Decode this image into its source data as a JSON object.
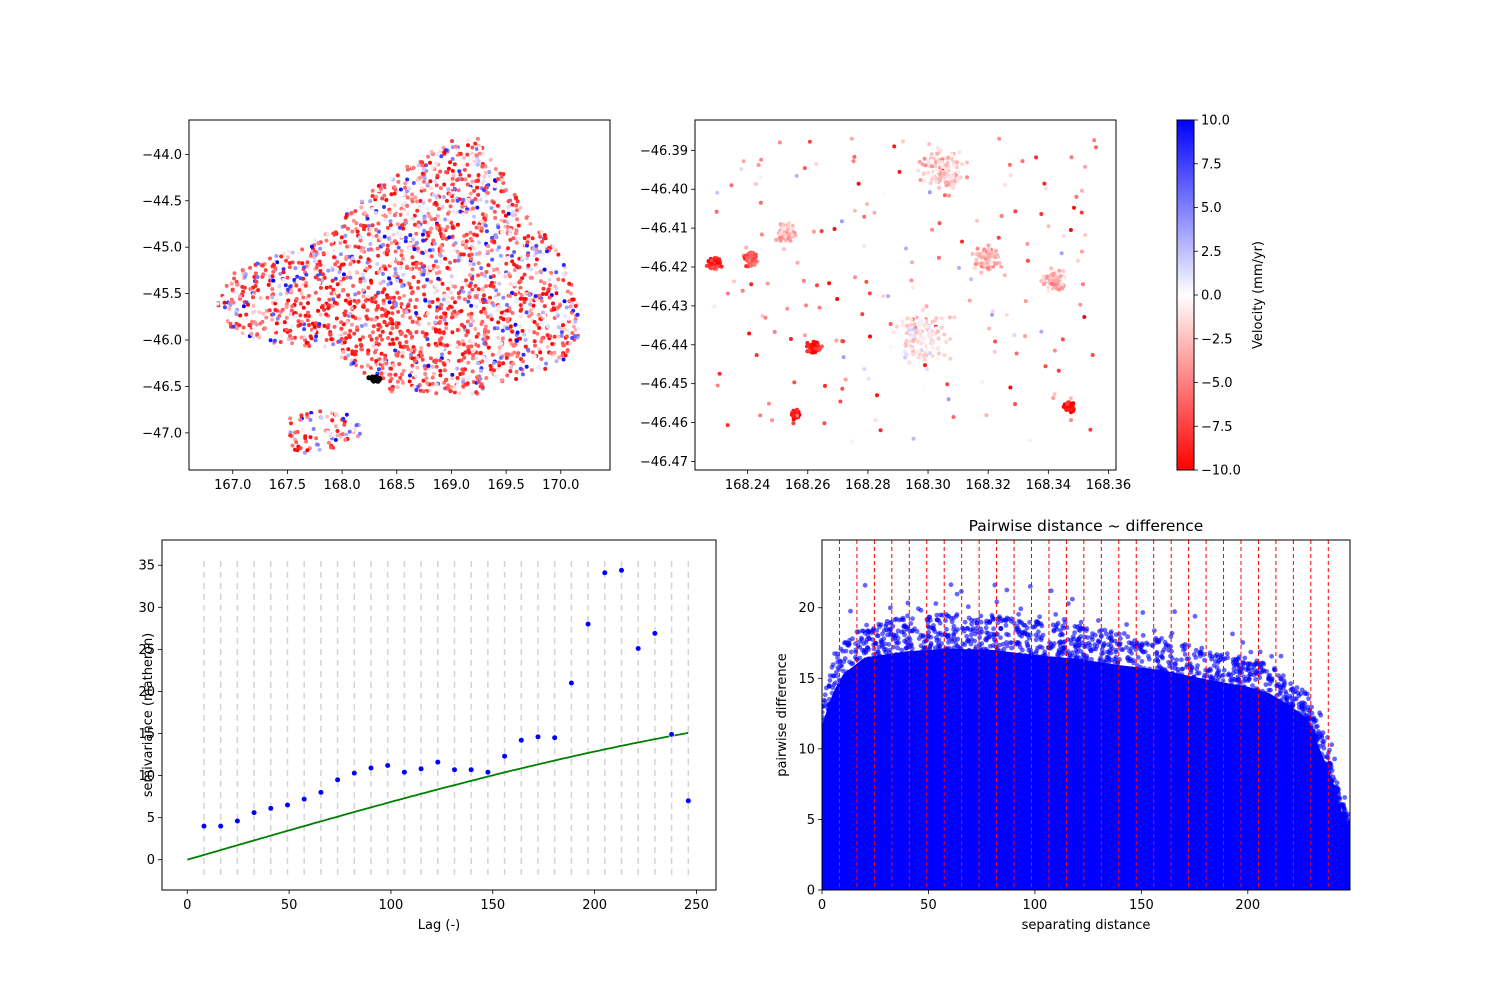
{
  "chart_data": [
    {
      "id": "map_overview",
      "type": "scatter",
      "title": "",
      "xlabel": "",
      "ylabel": "",
      "xlim": [
        166.6,
        170.45
      ],
      "ylim": [
        -47.4,
        -43.63
      ],
      "xticks": [
        167.0,
        167.5,
        168.0,
        168.5,
        169.0,
        169.5,
        170.0
      ],
      "xtick_labels": [
        "167.0",
        "167.5",
        "168.0",
        "168.5",
        "169.0",
        "169.5",
        "170.0"
      ],
      "yticks": [
        -44.0,
        -44.5,
        -45.0,
        -45.5,
        -46.0,
        -46.5,
        -47.0
      ],
      "ytick_labels": [
        "−44.0",
        "−44.5",
        "−45.0",
        "−45.5",
        "−46.0",
        "−46.5",
        "−47.0"
      ],
      "point_cloud": {
        "encoding": "velocity colored red (-10) to white (0) to blue (10)",
        "main_region_polygon": [
          [
            166.85,
            -45.6
          ],
          [
            167.0,
            -45.25
          ],
          [
            167.5,
            -45.05
          ],
          [
            167.9,
            -44.8
          ],
          [
            168.3,
            -44.35
          ],
          [
            168.7,
            -44.05
          ],
          [
            169.0,
            -43.85
          ],
          [
            169.25,
            -43.8
          ],
          [
            169.55,
            -44.35
          ],
          [
            170.0,
            -45.1
          ],
          [
            170.25,
            -45.85
          ],
          [
            170.0,
            -46.25
          ],
          [
            169.2,
            -46.6
          ],
          [
            168.4,
            -46.55
          ],
          [
            167.9,
            -46.1
          ],
          [
            167.4,
            -46.05
          ],
          [
            167.0,
            -45.9
          ]
        ],
        "island_polygon": [
          [
            167.5,
            -46.85
          ],
          [
            167.75,
            -46.75
          ],
          [
            168.1,
            -46.8
          ],
          [
            168.25,
            -47.0
          ],
          [
            167.9,
            -47.2
          ],
          [
            167.55,
            -47.25
          ]
        ],
        "dense_red_zone_polygon": [
          [
            167.55,
            -45.45
          ],
          [
            168.3,
            -45.35
          ],
          [
            169.0,
            -45.8
          ],
          [
            169.3,
            -46.1
          ],
          [
            168.9,
            -46.35
          ],
          [
            168.0,
            -46.15
          ],
          [
            167.55,
            -45.9
          ]
        ],
        "highlight_cluster": {
          "x": 168.3,
          "y": -46.42,
          "color": "#000000"
        }
      }
    },
    {
      "id": "map_zoom",
      "type": "scatter",
      "title": "",
      "xlabel": "",
      "ylabel": "",
      "xlim": [
        168.2225,
        168.3625
      ],
      "ylim": [
        -46.4722,
        -46.3822
      ],
      "xticks": [
        168.24,
        168.26,
        168.28,
        168.3,
        168.32,
        168.34,
        168.36
      ],
      "xtick_labels": [
        "168.24",
        "168.26",
        "168.28",
        "168.30",
        "168.32",
        "168.34",
        "168.36"
      ],
      "yticks": [
        -46.39,
        -46.4,
        -46.41,
        -46.42,
        -46.43,
        -46.44,
        -46.45,
        -46.46,
        -46.47
      ],
      "ytick_labels": [
        "−46.39",
        "−46.40",
        "−46.41",
        "−46.42",
        "−46.43",
        "−46.44",
        "−46.45",
        "−46.46",
        "−46.47"
      ],
      "point_clusters": [
        {
          "x": 168.229,
          "y": -46.419,
          "spread": 0.003,
          "v": -8
        },
        {
          "x": 168.241,
          "y": -46.418,
          "spread": 0.003,
          "v": -6
        },
        {
          "x": 168.253,
          "y": -46.411,
          "spread": 0.004,
          "v": -3
        },
        {
          "x": 168.262,
          "y": -46.441,
          "spread": 0.003,
          "v": -9
        },
        {
          "x": 168.256,
          "y": -46.458,
          "spread": 0.002,
          "v": -9
        },
        {
          "x": 168.298,
          "y": -46.438,
          "spread": 0.012,
          "v": -1
        },
        {
          "x": 168.305,
          "y": -46.395,
          "spread": 0.01,
          "v": -2
        },
        {
          "x": 168.32,
          "y": -46.418,
          "spread": 0.006,
          "v": -3
        },
        {
          "x": 168.342,
          "y": -46.423,
          "spread": 0.005,
          "v": -3
        },
        {
          "x": 168.347,
          "y": -46.456,
          "spread": 0.002,
          "v": -10
        }
      ]
    },
    {
      "id": "colorbar",
      "type": "colorbar",
      "label": "Velocity (mm/yr)",
      "range": [
        -10.0,
        10.0
      ],
      "ticks": [
        10.0,
        7.5,
        5.0,
        2.5,
        0.0,
        -2.5,
        -5.0,
        -7.5,
        -10.0
      ],
      "tick_labels": [
        "10.0",
        "7.5",
        "5.0",
        "2.5",
        "0.0",
        "−2.5",
        "−5.0",
        "−7.5",
        "−10.0"
      ],
      "colors": {
        "low": "#ff0000",
        "mid": "#ffffff",
        "high": "#0000ff"
      }
    },
    {
      "id": "variogram",
      "type": "scatter",
      "title": "",
      "xlabel": "Lag (-)",
      "ylabel": "semivariance (matheron)",
      "xlim": [
        -12.4,
        259.6
      ],
      "ylim": [
        -3.6,
        38.0
      ],
      "xticks": [
        0,
        50,
        100,
        150,
        200,
        250
      ],
      "xtick_labels": [
        "0",
        "50",
        "100",
        "150",
        "200",
        "250"
      ],
      "yticks": [
        0,
        5,
        10,
        15,
        20,
        25,
        30,
        35
      ],
      "ytick_labels": [
        "0",
        "5",
        "10",
        "15",
        "20",
        "25",
        "30",
        "35"
      ],
      "experimental": {
        "x": [
          8.2,
          16.4,
          24.6,
          32.8,
          41.0,
          49.2,
          57.4,
          65.6,
          73.8,
          82.0,
          90.2,
          98.4,
          106.6,
          114.8,
          123.0,
          131.2,
          139.4,
          147.6,
          155.8,
          164.0,
          172.2,
          180.4,
          188.6,
          196.8,
          205.0,
          213.2,
          221.4,
          229.6,
          237.8,
          246.0
        ],
        "y": [
          4.0,
          4.0,
          4.6,
          5.6,
          6.1,
          6.5,
          7.2,
          8.0,
          9.5,
          10.3,
          10.9,
          11.2,
          10.4,
          10.8,
          11.6,
          10.7,
          10.7,
          10.4,
          12.3,
          14.2,
          14.6,
          14.5,
          21.0,
          28.0,
          34.1,
          34.4,
          25.1,
          26.9,
          14.9,
          7.0
        ],
        "color": "#0000ff"
      },
      "model": {
        "type": "spherical",
        "sill": 18.7,
        "range": 400,
        "x_max": 246,
        "color": "#008000"
      },
      "bin_edge_lines": {
        "color": "#d3d3d3",
        "y_range": [
          -1.8,
          36.0
        ]
      }
    },
    {
      "id": "pairwise",
      "type": "scatter",
      "title": "Pairwise distance ~ difference",
      "xlabel": "separating distance",
      "ylabel": "pairwise difference",
      "xlim": [
        0,
        248
      ],
      "ylim": [
        0,
        24.8
      ],
      "xticks": [
        0,
        50,
        100,
        150,
        200
      ],
      "xtick_labels": [
        "0",
        "50",
        "100",
        "150",
        "200"
      ],
      "yticks": [
        0,
        5,
        10,
        15,
        20
      ],
      "ytick_labels": [
        "0",
        "5",
        "10",
        "15",
        "20"
      ],
      "envelope": {
        "x": [
          0,
          5,
          10,
          20,
          40,
          60,
          80,
          100,
          120,
          140,
          160,
          180,
          200,
          210,
          220,
          228,
          234,
          240,
          244,
          248
        ],
        "y": [
          13.0,
          15.5,
          17.0,
          18.3,
          18.8,
          19.0,
          18.9,
          18.5,
          18.2,
          17.7,
          17.3,
          16.6,
          16.0,
          15.5,
          14.5,
          13.5,
          11.0,
          8.5,
          6.2,
          5.0
        ]
      },
      "point_color": "#0000ff",
      "bin_lines": {
        "x": [
          8.2,
          16.4,
          24.6,
          32.8,
          41.0,
          49.2,
          57.4,
          65.6,
          73.8,
          82.0,
          90.2,
          98.4,
          106.6,
          114.8,
          123.0,
          131.2,
          139.4,
          147.6,
          155.8,
          164.0,
          172.2,
          180.4,
          188.6,
          196.8,
          205.0,
          213.2,
          221.4,
          229.6,
          237.8
        ],
        "color": "#ff0000"
      }
    }
  ]
}
